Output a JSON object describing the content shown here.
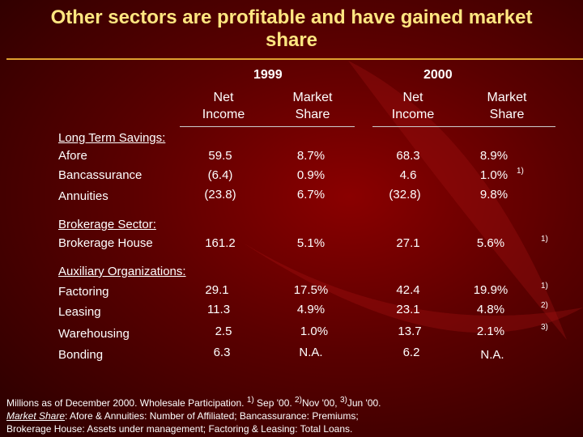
{
  "title_line1": "Other sectors are profitable and  have gained market",
  "title_line2": "share",
  "years": [
    "1999",
    "2000"
  ],
  "col_headers": [
    {
      "l1": "Net",
      "l2": "Income"
    },
    {
      "l1": "Market",
      "l2": "Share"
    },
    {
      "l1": "Net",
      "l2": "Income"
    },
    {
      "l1": "Market",
      "l2": "Share"
    }
  ],
  "sections": {
    "long_term": "Long Term Savings:",
    "brokerage": "Brokerage Sector:",
    "auxiliary": "Auxiliary Organizations:"
  },
  "rows": [
    {
      "label": "Afore",
      "v": [
        "59.5",
        "8.7%",
        "68.3",
        "8.9%"
      ],
      "note": ""
    },
    {
      "label": "Bancassurance",
      "v": [
        "(6.4)",
        "0.9%",
        "4.6",
        "1.0%"
      ],
      "note": "1)"
    },
    {
      "label": "Annuities",
      "v": [
        "(23.8)",
        "6.7%",
        "(32.8)",
        "9.8%"
      ],
      "note": ""
    },
    {
      "label": "Brokerage House",
      "v": [
        "161.2",
        "5.1%",
        "27.1",
        "5.6%"
      ],
      "note": "1)"
    },
    {
      "label": "Factoring",
      "v": [
        "29.1",
        "17.5%",
        "42.4",
        "19.9%"
      ],
      "note": "1)"
    },
    {
      "label": "Leasing",
      "v": [
        "11.3",
        "4.9%",
        "23.1",
        "4.8%"
      ],
      "note": "2)"
    },
    {
      "label": "Warehousing",
      "v": [
        "2.5",
        "1.0%",
        "13.7",
        "2.1%"
      ],
      "note": "3)"
    },
    {
      "label": "Bonding",
      "v": [
        "6.3",
        "N.A.",
        "6.2",
        "N.A."
      ],
      "note": ""
    }
  ],
  "footnote": {
    "line1_a": "Millions as of December 2000. Wholesale Participation. ",
    "sup1": "1)",
    "line1_b": " Sep '00. ",
    "sup2": "2)",
    "line1_c": "Nov '00, ",
    "sup3": "3)",
    "line1_d": "Jun '00.",
    "line2_u": "Market Share",
    "line2_rest": ": Afore & Annuities: Number of Affiliated; Bancassurance: Premiums;",
    "line3": "Brokerage House: Assets under management; Factoring & Leasing: Total Loans."
  },
  "colors": {
    "background": "#5a0000",
    "title": "#ffe680",
    "rule": "#e0a030"
  }
}
